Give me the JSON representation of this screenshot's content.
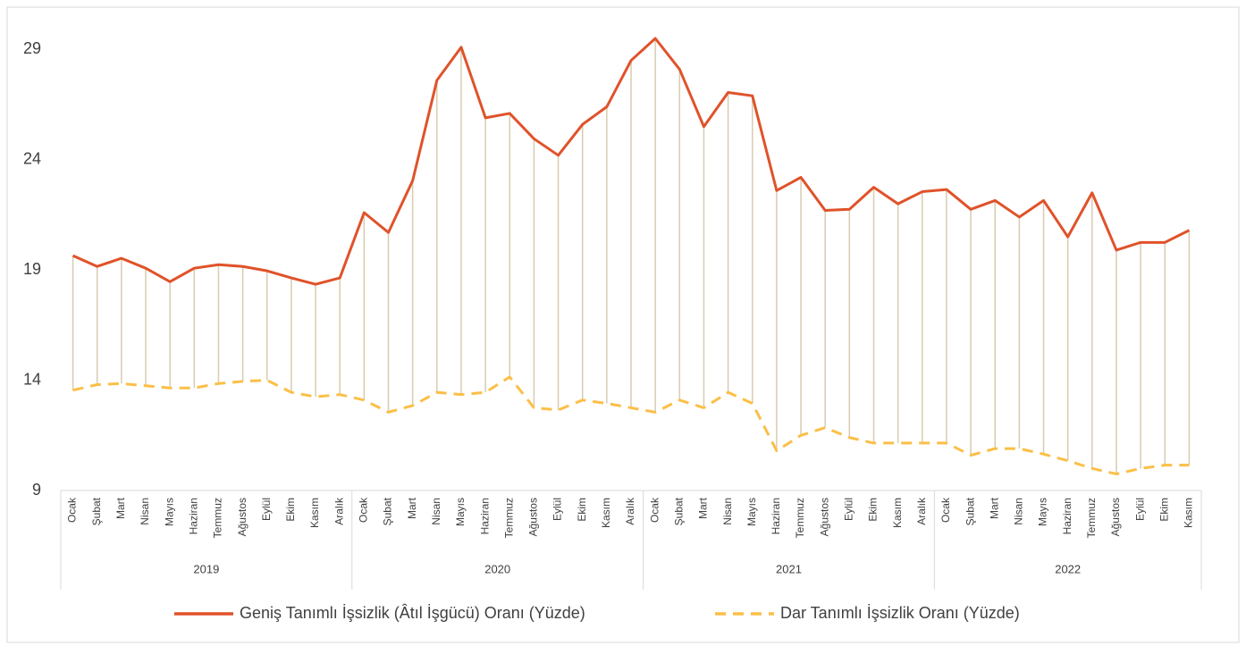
{
  "chart_data": {
    "type": "line",
    "groups": [
      {
        "label": "2019",
        "categories": [
          "Ocak",
          "Şubat",
          "Mart",
          "Nisan",
          "Mayıs",
          "Haziran",
          "Temmuz",
          "Ağustos",
          "Eylül",
          "Ekim",
          "Kasım",
          "Aralık"
        ]
      },
      {
        "label": "2020",
        "categories": [
          "Ocak",
          "Şubat",
          "Mart",
          "Nisan",
          "Mayıs",
          "Haziran",
          "Temmuz",
          "Ağustos",
          "Eylül",
          "Ekim",
          "Kasım",
          "Aralık"
        ]
      },
      {
        "label": "2021",
        "categories": [
          "Ocak",
          "Şubat",
          "Mart",
          "Nisan",
          "Mayıs",
          "Haziran",
          "Temmuz",
          "Ağustos",
          "Eylül",
          "Ekim",
          "Kasım",
          "Aralık"
        ]
      },
      {
        "label": "2022",
        "categories": [
          "Ocak",
          "Şubat",
          "Mart",
          "Nisan",
          "Mayıs",
          "Haziran",
          "Temmuz",
          "Ağustos",
          "Eylül",
          "Ekim",
          "Kasım"
        ]
      }
    ],
    "series": [
      {
        "name": "Geniş Tanımlı İşsizlik (Âtıl İşgücü) Oranı (Yüzde)",
        "color": "#e0522a",
        "dash": false,
        "values": [
          19.65,
          19.16,
          19.53,
          19.08,
          18.47,
          19.08,
          19.24,
          19.16,
          18.96,
          18.64,
          18.35,
          18.64,
          21.6,
          20.7,
          23.05,
          27.6,
          29.1,
          25.9,
          26.1,
          24.95,
          24.2,
          25.6,
          26.4,
          28.5,
          29.5,
          28.1,
          25.5,
          27.05,
          26.9,
          22.6,
          23.2,
          21.7,
          21.75,
          22.75,
          22.0,
          22.55,
          22.65,
          21.75,
          22.15,
          21.4,
          22.15,
          20.5,
          22.5,
          19.9,
          20.25,
          20.25,
          20.8
        ]
      },
      {
        "name": "Dar Tanımlı İşsizlik Oranı (Yüzde)",
        "color": "#fbbf47",
        "dash": true,
        "values": [
          13.55,
          13.8,
          13.85,
          13.75,
          13.65,
          13.65,
          13.85,
          13.95,
          14.0,
          13.45,
          13.25,
          13.35,
          13.1,
          12.55,
          12.85,
          13.45,
          13.35,
          13.45,
          14.15,
          12.75,
          12.65,
          13.1,
          12.95,
          12.75,
          12.55,
          13.1,
          12.75,
          13.45,
          12.95,
          10.8,
          11.5,
          11.85,
          11.4,
          11.15,
          11.15,
          11.15,
          11.15,
          10.6,
          10.9,
          10.9,
          10.65,
          10.35,
          10.0,
          9.75,
          10.0,
          10.15,
          10.15
        ]
      }
    ],
    "drop_line_color": "#d8ccb0",
    "ylim": [
      9,
      29.5
    ],
    "yticks": [
      9,
      14,
      19,
      24,
      29
    ],
    "grid": false
  }
}
